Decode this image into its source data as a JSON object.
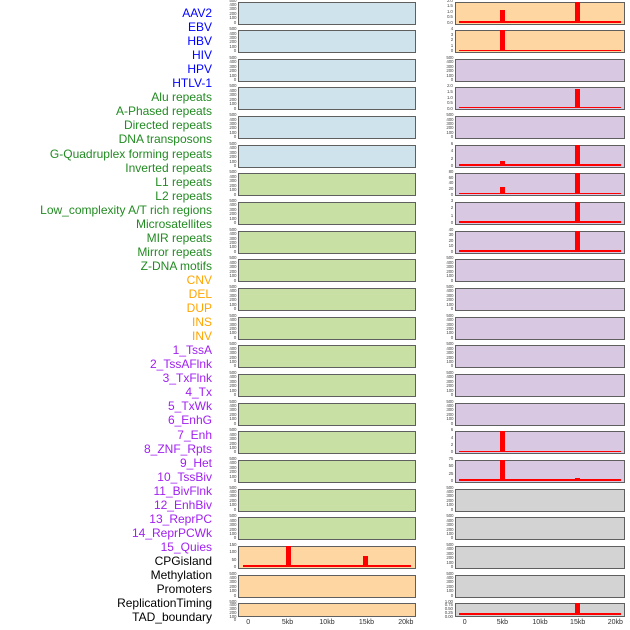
{
  "figure_title": "",
  "label_colors": {
    "virus": "#0000ff",
    "repeat": "#228b22",
    "sv": "#ffa500",
    "chromatin_state": "#a020f0",
    "other": "#000000"
  },
  "panel_fills": {
    "blue": "#cfe3ec",
    "green": "#c9e0a4",
    "orange": "#fdd6a2",
    "purple": "#d8c8e1",
    "gray": "#d3d3d3"
  },
  "panel_border_color": "#5f5f5f",
  "accent_red": "#ff0000",
  "tick_text_color": "#4a4a4a",
  "chart_data": {
    "type": "line",
    "description": "44 small-multiple profile panels (two columns of 22, column-major order) showing red signal spikes across a 0-20kb window; spikes occur at 5kb and 15kb",
    "x_range_kb": [
      0,
      20
    ],
    "x_ticks": [
      {
        "label": "0",
        "kb": 0
      },
      {
        "label": "5kb",
        "kb": 5
      },
      {
        "label": "10kb",
        "kb": 10
      },
      {
        "label": "15kb",
        "kb": 15
      },
      {
        "label": "20kb",
        "kb": 20
      }
    ],
    "panels": [
      {
        "label": "AAV2",
        "group": "virus",
        "fill": "blue",
        "yticks": [
          "500",
          "400",
          "300",
          "200",
          "100",
          "0"
        ],
        "spikes": []
      },
      {
        "label": "EBV",
        "group": "virus",
        "fill": "blue",
        "yticks": [
          "500",
          "400",
          "300",
          "200",
          "100",
          "0"
        ],
        "spikes": []
      },
      {
        "label": "HBV",
        "group": "virus",
        "fill": "blue",
        "yticks": [
          "500",
          "400",
          "300",
          "200",
          "100",
          "0"
        ],
        "spikes": []
      },
      {
        "label": "HIV",
        "group": "virus",
        "fill": "blue",
        "yticks": [
          "500",
          "400",
          "300",
          "200",
          "100",
          "0"
        ],
        "spikes": []
      },
      {
        "label": "HPV",
        "group": "virus",
        "fill": "blue",
        "yticks": [
          "500",
          "400",
          "300",
          "200",
          "100",
          "0"
        ],
        "spikes": []
      },
      {
        "label": "HTLV-1",
        "group": "virus",
        "fill": "blue",
        "yticks": [
          "500",
          "400",
          "300",
          "200",
          "100",
          "0"
        ],
        "spikes": []
      },
      {
        "label": "Alu repeats",
        "group": "repeat",
        "fill": "green",
        "yticks": [
          "500",
          "400",
          "300",
          "200",
          "100",
          "0"
        ],
        "spikes": []
      },
      {
        "label": "A-Phased repeats",
        "group": "repeat",
        "fill": "green",
        "yticks": [
          "500",
          "400",
          "300",
          "200",
          "100",
          "0"
        ],
        "spikes": []
      },
      {
        "label": "Directed repeats",
        "group": "repeat",
        "fill": "green",
        "yticks": [
          "500",
          "400",
          "300",
          "200",
          "100",
          "0"
        ],
        "spikes": []
      },
      {
        "label": "DNA transposons",
        "group": "repeat",
        "fill": "green",
        "yticks": [
          "500",
          "400",
          "300",
          "200",
          "100",
          "0"
        ],
        "spikes": []
      },
      {
        "label": "G-Quadruplex forming repeats",
        "group": "repeat",
        "fill": "green",
        "yticks": [
          "500",
          "400",
          "300",
          "200",
          "100",
          "0"
        ],
        "spikes": []
      },
      {
        "label": "Inverted repeats",
        "group": "repeat",
        "fill": "green",
        "yticks": [
          "500",
          "400",
          "300",
          "200",
          "100",
          "0"
        ],
        "spikes": []
      },
      {
        "label": "L1 repeats",
        "group": "repeat",
        "fill": "green",
        "yticks": [
          "500",
          "400",
          "300",
          "200",
          "100",
          "0"
        ],
        "spikes": []
      },
      {
        "label": "L2 repeats",
        "group": "repeat",
        "fill": "green",
        "yticks": [
          "500",
          "400",
          "300",
          "200",
          "100",
          "0"
        ],
        "spikes": []
      },
      {
        "label": "Low_complexity A/T rich regions",
        "group": "repeat",
        "fill": "green",
        "yticks": [
          "500",
          "400",
          "300",
          "200",
          "100",
          "0"
        ],
        "spikes": []
      },
      {
        "label": "Microsatellites",
        "group": "repeat",
        "fill": "green",
        "yticks": [
          "500",
          "400",
          "300",
          "200",
          "100",
          "0"
        ],
        "spikes": []
      },
      {
        "label": "MIR repeats",
        "group": "repeat",
        "fill": "green",
        "yticks": [
          "500",
          "400",
          "300",
          "200",
          "100",
          "0"
        ],
        "spikes": []
      },
      {
        "label": "Mirror repeats",
        "group": "repeat",
        "fill": "green",
        "yticks": [
          "500",
          "400",
          "300",
          "200",
          "100",
          "0"
        ],
        "spikes": []
      },
      {
        "label": "Z-DNA motifs",
        "group": "repeat",
        "fill": "green",
        "yticks": [
          "500",
          "400",
          "300",
          "200",
          "100",
          "0"
        ],
        "spikes": []
      },
      {
        "label": "CNV",
        "group": "sv",
        "fill": "orange",
        "yticks": [
          "150",
          "100",
          "50",
          "0"
        ],
        "baseline": true,
        "spikes": [
          {
            "x_kb": 5,
            "value": 160
          },
          {
            "x_kb": 15,
            "value": 75
          }
        ]
      },
      {
        "label": "DEL",
        "group": "sv",
        "fill": "orange",
        "yticks": [
          "500",
          "400",
          "300",
          "200",
          "100",
          "0"
        ],
        "spikes": []
      },
      {
        "label": "DUP",
        "group": "sv",
        "fill": "orange",
        "yticks": [
          "500",
          "400",
          "300",
          "200",
          "100",
          "0"
        ],
        "spikes": []
      },
      {
        "label": "INS",
        "group": "sv",
        "fill": "orange",
        "yticks": [
          "2.0",
          "1.5",
          "1.0",
          "0.5",
          "0.0"
        ],
        "baseline": true,
        "spikes": [
          {
            "x_kb": 5,
            "value": 1.2
          },
          {
            "x_kb": 15,
            "value": 2.0
          }
        ]
      },
      {
        "label": "INV",
        "group": "sv",
        "fill": "orange",
        "yticks": [
          "4",
          "3",
          "2",
          "1",
          "0"
        ],
        "baseline": true,
        "spikes": [
          {
            "x_kb": 5,
            "value": 4.0
          }
        ]
      },
      {
        "label": "1_TssA",
        "group": "chromatin_state",
        "fill": "purple",
        "yticks": [
          "500",
          "400",
          "300",
          "200",
          "100",
          "0"
        ],
        "spikes": []
      },
      {
        "label": "2_TssAFlnk",
        "group": "chromatin_state",
        "fill": "purple",
        "yticks": [
          "2.0",
          "1.5",
          "1.0",
          "0.5",
          "0.0"
        ],
        "baseline": true,
        "spikes": [
          {
            "x_kb": 15,
            "value": 1.9
          }
        ]
      },
      {
        "label": "3_TxFlnk",
        "group": "chromatin_state",
        "fill": "purple",
        "yticks": [
          "500",
          "400",
          "300",
          "200",
          "100",
          "0"
        ],
        "spikes": []
      },
      {
        "label": "4_Tx",
        "group": "chromatin_state",
        "fill": "purple",
        "yticks": [
          "6",
          "4",
          "2",
          "0"
        ],
        "baseline": true,
        "spikes": [
          {
            "x_kb": 5,
            "value": 1.3
          },
          {
            "x_kb": 15,
            "value": 6
          }
        ]
      },
      {
        "label": "5_TxWk",
        "group": "chromatin_state",
        "fill": "purple",
        "yticks": [
          "80",
          "60",
          "40",
          "20",
          "0"
        ],
        "baseline": true,
        "spikes": [
          {
            "x_kb": 5,
            "value": 30
          },
          {
            "x_kb": 15,
            "value": 80
          }
        ]
      },
      {
        "label": "6_EnhG",
        "group": "chromatin_state",
        "fill": "purple",
        "yticks": [
          "3",
          "2",
          "1",
          "0"
        ],
        "baseline": "thick",
        "spikes": [
          {
            "x_kb": 15,
            "value": 3
          }
        ]
      },
      {
        "label": "7_Enh",
        "group": "chromatin_state",
        "fill": "purple",
        "yticks": [
          "40",
          "30",
          "20",
          "10",
          "0"
        ],
        "baseline": true,
        "spikes": [
          {
            "x_kb": 15,
            "value": 40
          }
        ]
      },
      {
        "label": "8_ZNF_Rpts",
        "group": "chromatin_state",
        "fill": "purple",
        "yticks": [
          "500",
          "400",
          "300",
          "200",
          "100",
          "0"
        ],
        "spikes": []
      },
      {
        "label": "9_Het",
        "group": "chromatin_state",
        "fill": "purple",
        "yticks": [
          "500",
          "400",
          "300",
          "200",
          "100",
          "0"
        ],
        "spikes": []
      },
      {
        "label": "10_TssBiv",
        "group": "chromatin_state",
        "fill": "purple",
        "yticks": [
          "500",
          "400",
          "300",
          "200",
          "100",
          "0"
        ],
        "spikes": []
      },
      {
        "label": "11_BivFlnk",
        "group": "chromatin_state",
        "fill": "purple",
        "yticks": [
          "500",
          "400",
          "300",
          "200",
          "100",
          "0"
        ],
        "spikes": []
      },
      {
        "label": "12_EnhBiv",
        "group": "chromatin_state",
        "fill": "purple",
        "yticks": [
          "500",
          "400",
          "300",
          "200",
          "100",
          "0"
        ],
        "spikes": []
      },
      {
        "label": "13_ReprPC",
        "group": "chromatin_state",
        "fill": "purple",
        "yticks": [
          "500",
          "400",
          "300",
          "200",
          "100",
          "0"
        ],
        "spikes": []
      },
      {
        "label": "14_ReprPCWk",
        "group": "chromatin_state",
        "fill": "purple",
        "yticks": [
          "6",
          "4",
          "2",
          "0"
        ],
        "baseline": true,
        "spikes": [
          {
            "x_kb": 5,
            "value": 6
          }
        ]
      },
      {
        "label": "15_Quies",
        "group": "chromatin_state",
        "fill": "purple",
        "yticks": [
          "75",
          "50",
          "25",
          "0"
        ],
        "baseline": true,
        "spikes": [
          {
            "x_kb": 5,
            "value": 75
          },
          {
            "x_kb": 15,
            "value": 9
          }
        ]
      },
      {
        "label": "CPGisland",
        "group": "other",
        "fill": "gray",
        "yticks": [
          "500",
          "400",
          "300",
          "200",
          "100",
          "0"
        ],
        "spikes": []
      },
      {
        "label": "Methylation",
        "group": "other",
        "fill": "gray",
        "yticks": [
          "500",
          "400",
          "300",
          "200",
          "100",
          "0"
        ],
        "spikes": []
      },
      {
        "label": "Promoters",
        "group": "other",
        "fill": "gray",
        "yticks": [
          "500",
          "400",
          "300",
          "200",
          "100",
          "0"
        ],
        "spikes": []
      },
      {
        "label": "ReplicationTiming",
        "group": "other",
        "fill": "gray",
        "yticks": [
          "500",
          "400",
          "300",
          "200",
          "100",
          "0"
        ],
        "spikes": []
      },
      {
        "label": "TAD_boundary",
        "group": "other",
        "fill": "gray",
        "yticks": [
          "1.00",
          "0.75",
          "0.50",
          "0.25",
          "0.00"
        ],
        "baseline": true,
        "spikes": [
          {
            "x_kb": 15,
            "value": 0.95
          }
        ]
      }
    ]
  }
}
